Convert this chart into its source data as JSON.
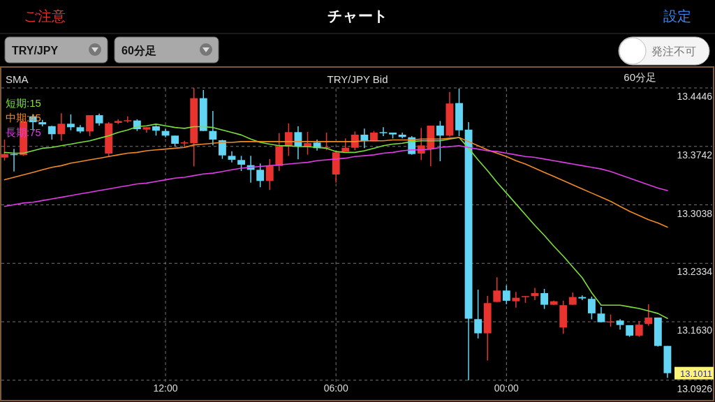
{
  "chart_data": {
    "type": "candlestick",
    "title": "チャート",
    "subtitle": "TRY/JPY  Bid",
    "annotations": [
      "ご注意",
      "設定",
      "TRY/JPY",
      "60分足",
      "発注不可",
      "SMA",
      "60分足",
      "13.1011"
    ],
    "categories": [
      null,
      null,
      null,
      null,
      null,
      null,
      null,
      null,
      null,
      null,
      null,
      null,
      null,
      null,
      null,
      null,
      null,
      "12:00",
      null,
      null,
      null,
      null,
      null,
      null,
      null,
      null,
      null,
      null,
      null,
      null,
      null,
      null,
      null,
      null,
      null,
      "06:00",
      null,
      null,
      null,
      null,
      null,
      null,
      null,
      null,
      null,
      null,
      null,
      null,
      null,
      null,
      null,
      null,
      null,
      "00:00",
      null,
      null,
      null,
      null,
      null,
      null,
      null,
      null,
      null,
      null,
      null,
      null,
      null,
      null,
      null,
      null,
      null
    ],
    "ohlc": [
      [
        13.3608,
        13.3824,
        13.3572,
        13.365
      ],
      [
        13.365,
        13.3712,
        13.344,
        13.3639
      ],
      [
        13.3637,
        13.406,
        13.363,
        13.404
      ],
      [
        13.4104,
        13.413,
        13.3936,
        13.4034
      ],
      [
        13.4034,
        13.4062,
        13.3984,
        13.4007
      ],
      [
        13.3986,
        13.399,
        13.3824,
        13.3889
      ],
      [
        13.3889,
        13.4141,
        13.381,
        13.4015
      ],
      [
        13.4015,
        13.4127,
        13.3936,
        13.3973
      ],
      [
        13.3973,
        13.3998,
        13.3902,
        13.3922
      ],
      [
        13.3922,
        13.4118,
        13.3866,
        13.4118
      ],
      [
        13.4118,
        13.4138,
        13.3992,
        13.402
      ],
      [
        13.3656,
        13.4034,
        13.3614,
        13.402
      ],
      [
        13.4026,
        13.4068,
        13.4012,
        13.4048
      ],
      [
        13.4045,
        13.4104,
        13.4028,
        13.4057
      ],
      [
        13.4054,
        13.4068,
        13.3928,
        13.395
      ],
      [
        13.3945,
        13.3973,
        13.3908,
        13.3973
      ],
      [
        13.3984,
        13.3998,
        13.3872,
        13.3931
      ],
      [
        13.3928,
        13.395,
        13.3852,
        13.3872
      ],
      [
        13.3872,
        13.3872,
        13.374,
        13.3774
      ],
      [
        13.378,
        13.381,
        13.3726,
        13.379
      ],
      [
        13.3782,
        13.4446,
        13.3502,
        13.4323
      ],
      [
        13.4323,
        13.4421,
        13.3928,
        13.3928
      ],
      [
        13.3928,
        13.4169,
        13.3754,
        13.3824
      ],
      [
        13.3816,
        13.3822,
        13.3592,
        13.3634
      ],
      [
        13.3628,
        13.3684,
        13.3549,
        13.3581
      ],
      [
        13.3578,
        13.3628,
        13.3446,
        13.3522
      ],
      [
        13.3516,
        13.3628,
        13.3306,
        13.346
      ],
      [
        13.346,
        13.3536,
        13.325,
        13.3326
      ],
      [
        13.3326,
        13.3591,
        13.3217,
        13.3507
      ],
      [
        13.3507,
        13.3902,
        13.3446,
        13.374
      ],
      [
        13.374,
        13.402,
        13.3628,
        13.3914
      ],
      [
        13.3914,
        13.3984,
        13.3586,
        13.374
      ],
      [
        13.3735,
        13.3917,
        13.3642,
        13.3782
      ],
      [
        13.3788,
        13.3824,
        13.3692,
        13.3721
      ],
      [
        13.3721,
        13.3908,
        13.3698,
        13.3734
      ],
      [
        13.3404,
        13.367,
        13.3306,
        13.367
      ],
      [
        13.3681,
        13.3838,
        13.3681,
        13.3726
      ],
      [
        13.3726,
        13.3922,
        13.3698,
        13.3883
      ],
      [
        13.3883,
        13.3956,
        13.3721,
        13.3805
      ],
      [
        13.3805,
        13.3928,
        13.3805,
        13.3908
      ],
      [
        13.3914,
        13.3973,
        13.3866,
        13.3902
      ],
      [
        13.3908,
        13.3908,
        13.3838,
        13.3886
      ],
      [
        13.3883,
        13.3908,
        13.3838,
        13.3855
      ],
      [
        13.3852,
        13.3866,
        13.3642,
        13.365
      ],
      [
        13.3656,
        13.3964,
        13.3578,
        13.3754
      ],
      [
        13.3712,
        13.3992,
        13.3502,
        13.3992
      ],
      [
        13.3992,
        13.4048,
        13.3564,
        13.3872
      ],
      [
        13.3872,
        13.4398,
        13.386,
        13.4259
      ],
      [
        13.4264,
        13.444,
        13.3866,
        13.3936
      ],
      [
        13.3944,
        13.4034,
        13.0925,
        13.1667
      ],
      [
        13.1662,
        13.2017,
        13.1429,
        13.1491
      ],
      [
        13.1491,
        13.1942,
        13.1163,
        13.1855
      ],
      [
        13.1869,
        13.2166,
        13.1869,
        13.2006
      ],
      [
        13.2006,
        13.2068,
        13.1841,
        13.1883
      ],
      [
        13.1877,
        13.199,
        13.1801,
        13.1919
      ],
      [
        13.1927,
        13.1939,
        13.1858,
        13.1939
      ],
      [
        13.1939,
        13.2037,
        13.1891,
        13.1975
      ],
      [
        13.1975,
        13.2026,
        13.1785,
        13.1835
      ],
      [
        13.1835,
        13.1885,
        13.183,
        13.1877
      ],
      [
        13.1561,
        13.1883,
        13.1486,
        13.183
      ],
      [
        13.1835,
        13.1982,
        13.1835,
        13.1928
      ],
      [
        13.1928,
        13.1948,
        13.1891,
        13.1911
      ],
      [
        13.1906,
        13.1933,
        13.1659,
        13.1732
      ],
      [
        13.1729,
        13.1807,
        13.1625,
        13.1625
      ],
      [
        13.1623,
        13.1717,
        13.157,
        13.1634
      ],
      [
        13.1645,
        13.1662,
        13.1536,
        13.1591
      ],
      [
        13.1589,
        13.1589,
        13.1449,
        13.1463
      ],
      [
        13.1463,
        13.1639,
        13.1449,
        13.1595
      ],
      [
        13.1603,
        13.1841,
        13.1583,
        13.1681
      ],
      [
        13.1681,
        13.1681,
        13.1331,
        13.1339
      ],
      [
        13.1339,
        13.1339,
        13.0953,
        13.1011
      ]
    ],
    "colors": [
      "#e8332f",
      "#62d4f4",
      "#e8332f",
      "#62d4f4",
      "#62d4f4",
      "#62d4f4",
      "#e8332f",
      "#62d4f4",
      "#62d4f4",
      "#e8332f",
      "#62d4f4",
      "#e8332f",
      "#e8332f",
      "#e8332f",
      "#62d4f4",
      "#e8332f",
      "#62d4f4",
      "#62d4f4",
      "#62d4f4",
      "#e8332f",
      "#e8332f",
      "#62d4f4",
      "#62d4f4",
      "#62d4f4",
      "#62d4f4",
      "#62d4f4",
      "#62d4f4",
      "#62d4f4",
      "#e8332f",
      "#e8332f",
      "#e8332f",
      "#62d4f4",
      "#e8332f",
      "#62d4f4",
      "#e8332f",
      "#e8332f",
      "#e8332f",
      "#e8332f",
      "#62d4f4",
      "#e8332f",
      "#62d4f4",
      "#62d4f4",
      "#62d4f4",
      "#62d4f4",
      "#e8332f",
      "#e8332f",
      "#62d4f4",
      "#e8332f",
      "#62d4f4",
      "#62d4f4",
      "#62d4f4",
      "#e8332f",
      "#e8332f",
      "#62d4f4",
      "#e8332f",
      "#e8332f",
      "#e8332f",
      "#62d4f4",
      "#e8332f",
      "#e8332f",
      "#e8332f",
      "#62d4f4",
      "#62d4f4",
      "#62d4f4",
      "#e8332f",
      "#62d4f4",
      "#62d4f4",
      "#e8332f",
      "#e8332f",
      "#62d4f4",
      "#62d4f4"
    ],
    "series": [
      {
        "name": "短期:15",
        "type": "line",
        "color": "#7be03a",
        "values": [
          13.367,
          13.366,
          13.366,
          13.369,
          13.372,
          13.373,
          13.375,
          13.377,
          13.379,
          13.381,
          13.384,
          13.387,
          13.391,
          13.394,
          13.398,
          13.399,
          13.401,
          13.399,
          13.397,
          13.396,
          13.398,
          13.398,
          13.397,
          13.394,
          13.391,
          13.388,
          13.383,
          13.379,
          13.377,
          13.375,
          13.375,
          13.374,
          13.374,
          13.373,
          13.372,
          13.368,
          13.367,
          13.367,
          13.369,
          13.372,
          13.375,
          13.377,
          13.378,
          13.38,
          13.381,
          13.381,
          13.381,
          13.383,
          13.385,
          13.372,
          13.358,
          13.345,
          13.331,
          13.318,
          13.305,
          13.292,
          13.279,
          13.267,
          13.254,
          13.242,
          13.229,
          13.216,
          13.198,
          13.183,
          13.183,
          13.183,
          13.181,
          13.179,
          13.176,
          13.173,
          13.167
        ]
      },
      {
        "name": "中期:45",
        "type": "line",
        "color": "#f08a24",
        "values": [
          13.334,
          13.337,
          13.34,
          13.343,
          13.346,
          13.349,
          13.351,
          13.354,
          13.356,
          13.358,
          13.36,
          13.362,
          13.364,
          13.366,
          13.367,
          13.369,
          13.37,
          13.371,
          13.372,
          13.373,
          13.376,
          13.377,
          13.378,
          13.379,
          13.379,
          13.38,
          13.38,
          13.38,
          13.38,
          13.38,
          13.38,
          13.38,
          13.38,
          13.38,
          13.38,
          13.38,
          13.38,
          13.38,
          13.381,
          13.381,
          13.381,
          13.382,
          13.382,
          13.382,
          13.383,
          13.383,
          13.383,
          13.384,
          13.385,
          13.38,
          13.375,
          13.37,
          13.366,
          13.362,
          13.357,
          13.353,
          13.348,
          13.343,
          13.338,
          13.333,
          13.328,
          13.323,
          13.318,
          13.313,
          13.308,
          13.302,
          13.296,
          13.291,
          13.286,
          13.282,
          13.277
        ]
      },
      {
        "name": "長期:75",
        "type": "line",
        "color": "#e03ce8",
        "values": [
          13.302,
          13.304,
          13.306,
          13.307,
          13.309,
          13.311,
          13.313,
          13.315,
          13.317,
          13.319,
          13.321,
          13.323,
          13.325,
          13.327,
          13.329,
          13.33,
          13.332,
          13.334,
          13.336,
          13.337,
          13.339,
          13.341,
          13.342,
          13.344,
          13.346,
          13.348,
          13.349,
          13.35,
          13.351,
          13.352,
          13.353,
          13.354,
          13.355,
          13.357,
          13.358,
          13.359,
          13.36,
          13.362,
          13.363,
          13.364,
          13.366,
          13.367,
          13.369,
          13.37,
          13.37,
          13.371,
          13.373,
          13.374,
          13.375,
          13.373,
          13.371,
          13.369,
          13.368,
          13.366,
          13.364,
          13.362,
          13.361,
          13.359,
          13.357,
          13.355,
          13.353,
          13.351,
          13.349,
          13.347,
          13.344,
          13.34,
          13.336,
          13.332,
          13.328,
          13.324,
          13.321
        ]
      }
    ],
    "ylim": [
      13.0899,
      13.469
    ],
    "yticks": [
      13.4446,
      13.3742,
      13.3038,
      13.2334,
      {
        "value": 13.163,
        "label": "13.1630"
      },
      13.0926
    ],
    "grid": true,
    "legend": "top left"
  }
}
